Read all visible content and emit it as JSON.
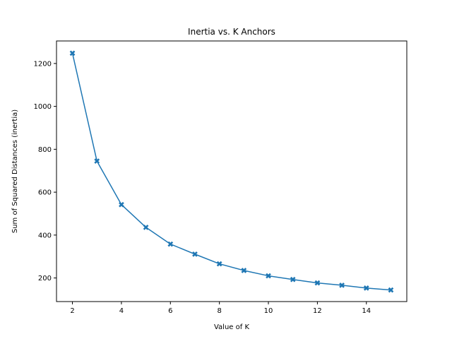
{
  "chart_data": {
    "type": "line",
    "title": "Inertia vs. K Anchors",
    "xlabel": "Value of K",
    "ylabel": "Sum of Squared Distances (inertia)",
    "xlim": [
      1.35,
      15.65
    ],
    "ylim": [
      90,
      1305
    ],
    "xticks": [
      2,
      4,
      6,
      8,
      10,
      12,
      14
    ],
    "yticks": [
      200,
      400,
      600,
      800,
      1000,
      1200
    ],
    "grid": false,
    "marker": "X",
    "color": "#1f77b4",
    "series": [
      {
        "x": [
          2,
          3,
          4,
          5,
          6,
          7,
          8,
          9,
          10,
          11,
          12,
          13,
          14,
          15
        ],
        "y": [
          1248,
          745,
          542,
          436,
          358,
          311,
          266,
          235,
          210,
          193,
          177,
          166,
          153,
          144
        ]
      }
    ]
  }
}
